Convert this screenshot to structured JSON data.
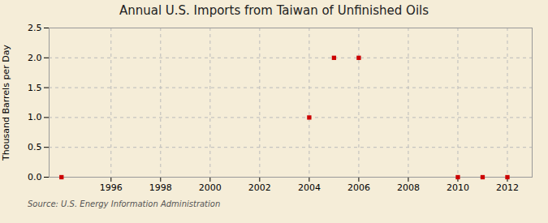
{
  "chart_data": {
    "type": "scatter",
    "title": "Annual U.S. Imports from Taiwan of Unfinished Oils",
    "ylabel": "Thousand Barrels per Day",
    "source": "Source: U.S. Energy Information Administration",
    "x": [
      1994,
      2004,
      2005,
      2006,
      2010,
      2011,
      2012
    ],
    "values": [
      0.0,
      1.0,
      2.0,
      2.0,
      0.0,
      0.0,
      0.0
    ],
    "color": "#CC0000",
    "marker": "square",
    "xlim": [
      1993.5,
      2013.0
    ],
    "ylim": [
      0,
      2.5
    ],
    "xticks": [
      1996,
      1998,
      2000,
      2002,
      2004,
      2006,
      2008,
      2010,
      2012
    ],
    "yticks": [
      {
        "value": 0.0,
        "label": "0.0"
      },
      0.5,
      {
        "value": 1.0,
        "label": "1.0"
      },
      1.5,
      {
        "value": 2.0,
        "label": "2.0"
      },
      2.5
    ],
    "grid": true
  }
}
